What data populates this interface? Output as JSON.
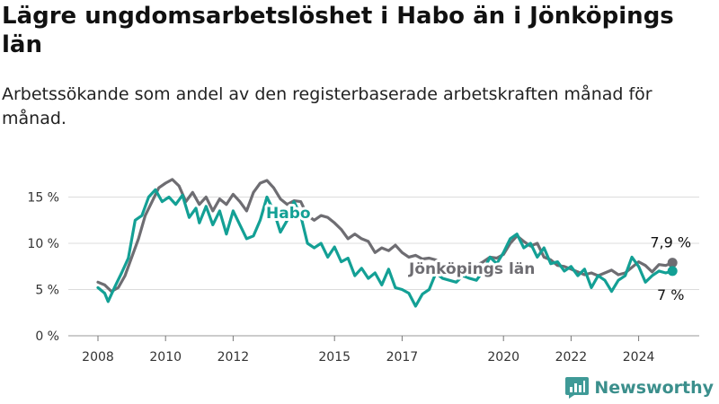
{
  "title": "Lägre ungdomsarbetslöshet i Habo än i Jönköpings län",
  "subtitle": "Arbetssökande som andel av den registerbaserade arbetskraften månad för månad.",
  "brand": {
    "name": "Newsworthy",
    "icon": "bar-chart-logo-icon",
    "color": "#3f9a97"
  },
  "chart_data": {
    "type": "line",
    "title": "Lägre ungdomsarbetslöshet i Habo än i Jönköpings län",
    "xlabel": "",
    "ylabel": "",
    "xlim": [
      2007.5,
      2025.5
    ],
    "ylim": [
      0,
      16
    ],
    "x_ticks": [
      2008,
      2010,
      2012,
      2015,
      2017,
      2020,
      2022,
      2024
    ],
    "y_ticks": [
      0,
      5,
      10,
      15
    ],
    "y_tick_labels": [
      "0 %",
      "5 %",
      "10 %",
      "15 %"
    ],
    "grid": "horizontal",
    "series": [
      {
        "name": "Jönköpings län",
        "color": "#6e6d72",
        "end_label": "7,9 %",
        "points": [
          [
            2008.0,
            5.8
          ],
          [
            2008.2,
            5.5
          ],
          [
            2008.4,
            4.8
          ],
          [
            2008.6,
            5.2
          ],
          [
            2008.8,
            6.5
          ],
          [
            2009.0,
            8.5
          ],
          [
            2009.2,
            10.5
          ],
          [
            2009.4,
            13.0
          ],
          [
            2009.6,
            14.5
          ],
          [
            2009.8,
            16.0
          ],
          [
            2010.0,
            16.5
          ],
          [
            2010.2,
            16.9
          ],
          [
            2010.4,
            16.2
          ],
          [
            2010.6,
            14.5
          ],
          [
            2010.8,
            15.5
          ],
          [
            2011.0,
            14.2
          ],
          [
            2011.2,
            15.0
          ],
          [
            2011.4,
            13.5
          ],
          [
            2011.6,
            14.8
          ],
          [
            2011.8,
            14.2
          ],
          [
            2012.0,
            15.3
          ],
          [
            2012.2,
            14.5
          ],
          [
            2012.4,
            13.5
          ],
          [
            2012.6,
            15.5
          ],
          [
            2012.8,
            16.5
          ],
          [
            2013.0,
            16.8
          ],
          [
            2013.2,
            16.0
          ],
          [
            2013.4,
            14.8
          ],
          [
            2013.6,
            14.2
          ],
          [
            2013.8,
            14.6
          ],
          [
            2014.0,
            14.5
          ],
          [
            2014.2,
            13.0
          ],
          [
            2014.4,
            12.5
          ],
          [
            2014.6,
            13.0
          ],
          [
            2014.8,
            12.8
          ],
          [
            2015.0,
            12.2
          ],
          [
            2015.2,
            11.5
          ],
          [
            2015.4,
            10.5
          ],
          [
            2015.6,
            11.0
          ],
          [
            2015.8,
            10.5
          ],
          [
            2016.0,
            10.2
          ],
          [
            2016.2,
            9.0
          ],
          [
            2016.4,
            9.5
          ],
          [
            2016.6,
            9.2
          ],
          [
            2016.8,
            9.8
          ],
          [
            2017.0,
            9.0
          ],
          [
            2017.2,
            8.5
          ],
          [
            2017.4,
            8.7
          ],
          [
            2017.6,
            8.3
          ],
          [
            2017.8,
            8.4
          ],
          [
            2018.0,
            8.2
          ],
          [
            2018.2,
            7.6
          ],
          [
            2018.4,
            7.4
          ],
          [
            2018.6,
            7.2
          ],
          [
            2018.8,
            7.0
          ],
          [
            2019.0,
            7.4
          ],
          [
            2019.2,
            7.6
          ],
          [
            2019.4,
            8.0
          ],
          [
            2019.6,
            8.5
          ],
          [
            2019.8,
            8.4
          ],
          [
            2020.0,
            8.8
          ],
          [
            2020.2,
            10.0
          ],
          [
            2020.4,
            10.8
          ],
          [
            2020.6,
            10.2
          ],
          [
            2020.8,
            9.7
          ],
          [
            2021.0,
            10.0
          ],
          [
            2021.2,
            8.5
          ],
          [
            2021.4,
            8.2
          ],
          [
            2021.6,
            7.6
          ],
          [
            2021.8,
            7.5
          ],
          [
            2022.0,
            7.2
          ],
          [
            2022.2,
            6.9
          ],
          [
            2022.4,
            6.6
          ],
          [
            2022.6,
            6.8
          ],
          [
            2022.8,
            6.5
          ],
          [
            2023.0,
            6.8
          ],
          [
            2023.2,
            7.1
          ],
          [
            2023.4,
            6.6
          ],
          [
            2023.6,
            6.8
          ],
          [
            2023.8,
            7.4
          ],
          [
            2024.0,
            8.0
          ],
          [
            2024.2,
            7.6
          ],
          [
            2024.4,
            6.9
          ],
          [
            2024.6,
            7.7
          ],
          [
            2024.8,
            7.6
          ],
          [
            2025.0,
            7.9
          ]
        ]
      },
      {
        "name": "Habo",
        "color": "#13a095",
        "end_label": "7 %",
        "points": [
          [
            2008.0,
            5.2
          ],
          [
            2008.2,
            4.6
          ],
          [
            2008.3,
            3.7
          ],
          [
            2008.5,
            5.3
          ],
          [
            2008.7,
            6.8
          ],
          [
            2008.9,
            8.4
          ],
          [
            2009.1,
            12.5
          ],
          [
            2009.3,
            13.0
          ],
          [
            2009.5,
            15.0
          ],
          [
            2009.7,
            15.8
          ],
          [
            2009.9,
            14.5
          ],
          [
            2010.1,
            15.0
          ],
          [
            2010.3,
            14.2
          ],
          [
            2010.5,
            15.2
          ],
          [
            2010.7,
            12.8
          ],
          [
            2010.9,
            13.8
          ],
          [
            2011.0,
            12.2
          ],
          [
            2011.2,
            14.0
          ],
          [
            2011.4,
            12.0
          ],
          [
            2011.6,
            13.5
          ],
          [
            2011.8,
            11.0
          ],
          [
            2012.0,
            13.5
          ],
          [
            2012.2,
            12.0
          ],
          [
            2012.4,
            10.5
          ],
          [
            2012.6,
            10.8
          ],
          [
            2012.8,
            12.5
          ],
          [
            2013.0,
            15.0
          ],
          [
            2013.2,
            13.5
          ],
          [
            2013.4,
            11.2
          ],
          [
            2013.6,
            12.5
          ],
          [
            2013.8,
            14.5
          ],
          [
            2014.0,
            13.0
          ],
          [
            2014.2,
            10.0
          ],
          [
            2014.4,
            9.5
          ],
          [
            2014.6,
            10.0
          ],
          [
            2014.8,
            8.5
          ],
          [
            2015.0,
            9.6
          ],
          [
            2015.2,
            8.0
          ],
          [
            2015.4,
            8.4
          ],
          [
            2015.6,
            6.5
          ],
          [
            2015.8,
            7.3
          ],
          [
            2016.0,
            6.2
          ],
          [
            2016.2,
            6.8
          ],
          [
            2016.4,
            5.5
          ],
          [
            2016.6,
            7.2
          ],
          [
            2016.8,
            5.2
          ],
          [
            2017.0,
            5.0
          ],
          [
            2017.2,
            4.6
          ],
          [
            2017.4,
            3.2
          ],
          [
            2017.6,
            4.5
          ],
          [
            2017.8,
            5.0
          ],
          [
            2018.0,
            6.8
          ],
          [
            2018.2,
            6.2
          ],
          [
            2018.4,
            6.0
          ],
          [
            2018.6,
            5.8
          ],
          [
            2018.8,
            6.5
          ],
          [
            2019.0,
            6.2
          ],
          [
            2019.2,
            6.0
          ],
          [
            2019.4,
            7.0
          ],
          [
            2019.6,
            8.5
          ],
          [
            2019.8,
            7.8
          ],
          [
            2020.0,
            9.0
          ],
          [
            2020.2,
            10.5
          ],
          [
            2020.4,
            11.0
          ],
          [
            2020.6,
            9.5
          ],
          [
            2020.8,
            10.0
          ],
          [
            2021.0,
            8.5
          ],
          [
            2021.2,
            9.5
          ],
          [
            2021.4,
            7.8
          ],
          [
            2021.6,
            8.0
          ],
          [
            2021.8,
            7.0
          ],
          [
            2022.0,
            7.5
          ],
          [
            2022.2,
            6.5
          ],
          [
            2022.4,
            7.2
          ],
          [
            2022.6,
            5.2
          ],
          [
            2022.8,
            6.5
          ],
          [
            2023.0,
            6.0
          ],
          [
            2023.2,
            4.8
          ],
          [
            2023.4,
            6.0
          ],
          [
            2023.6,
            6.5
          ],
          [
            2023.8,
            8.5
          ],
          [
            2024.0,
            7.5
          ],
          [
            2024.2,
            5.8
          ],
          [
            2024.4,
            6.5
          ],
          [
            2024.6,
            7.0
          ],
          [
            2024.8,
            6.8
          ],
          [
            2025.0,
            7.0
          ]
        ]
      }
    ]
  }
}
